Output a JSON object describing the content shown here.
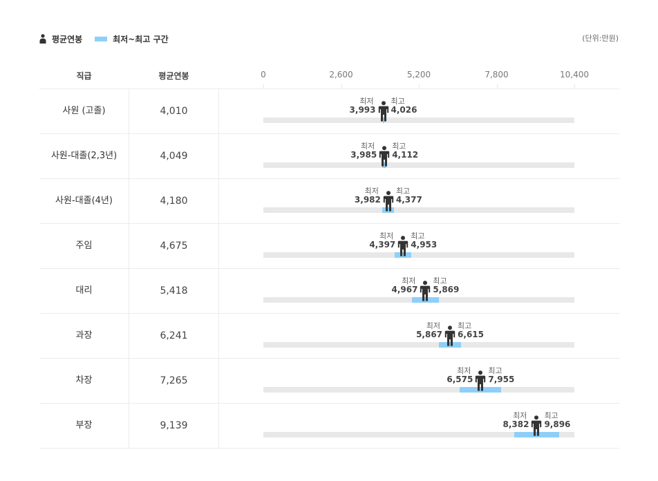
{
  "legend": {
    "avg_label": "평균연봉",
    "range_label": "최저~최고 구간",
    "unit": "(단위:만원)"
  },
  "colors": {
    "range": "#8ecff8",
    "track": "#e8e8e8",
    "person": "#333333"
  },
  "labels": {
    "min": "최저",
    "max": "최고"
  },
  "chart_data": {
    "type": "range-bar",
    "columns": [
      "직급",
      "평균연봉"
    ],
    "xlim": [
      0,
      10400
    ],
    "ticks": [
      {
        "value": 0,
        "label": "0"
      },
      {
        "value": 2600,
        "label": "2,600"
      },
      {
        "value": 5200,
        "label": "5,200"
      },
      {
        "value": 7800,
        "label": "7,800"
      },
      {
        "value": 10400,
        "label": "10,400"
      }
    ],
    "rows": [
      {
        "rank": "사원 (고졸)",
        "avg": 4010,
        "avg_label": "4,010",
        "min": 3993,
        "min_label": "3,993",
        "max": 4026,
        "max_label": "4,026"
      },
      {
        "rank": "사원-대졸(2,3년)",
        "avg": 4049,
        "avg_label": "4,049",
        "min": 3985,
        "min_label": "3,985",
        "max": 4112,
        "max_label": "4,112"
      },
      {
        "rank": "사원-대졸(4년)",
        "avg": 4180,
        "avg_label": "4,180",
        "min": 3982,
        "min_label": "3,982",
        "max": 4377,
        "max_label": "4,377"
      },
      {
        "rank": "주임",
        "avg": 4675,
        "avg_label": "4,675",
        "min": 4397,
        "min_label": "4,397",
        "max": 4953,
        "max_label": "4,953"
      },
      {
        "rank": "대리",
        "avg": 5418,
        "avg_label": "5,418",
        "min": 4967,
        "min_label": "4,967",
        "max": 5869,
        "max_label": "5,869"
      },
      {
        "rank": "과장",
        "avg": 6241,
        "avg_label": "6,241",
        "min": 5867,
        "min_label": "5,867",
        "max": 6615,
        "max_label": "6,615"
      },
      {
        "rank": "차장",
        "avg": 7265,
        "avg_label": "7,265",
        "min": 6575,
        "min_label": "6,575",
        "max": 7955,
        "max_label": "7,955"
      },
      {
        "rank": "부장",
        "avg": 9139,
        "avg_label": "9,139",
        "min": 8382,
        "min_label": "8,382",
        "max": 9896,
        "max_label": "9,896"
      }
    ]
  }
}
